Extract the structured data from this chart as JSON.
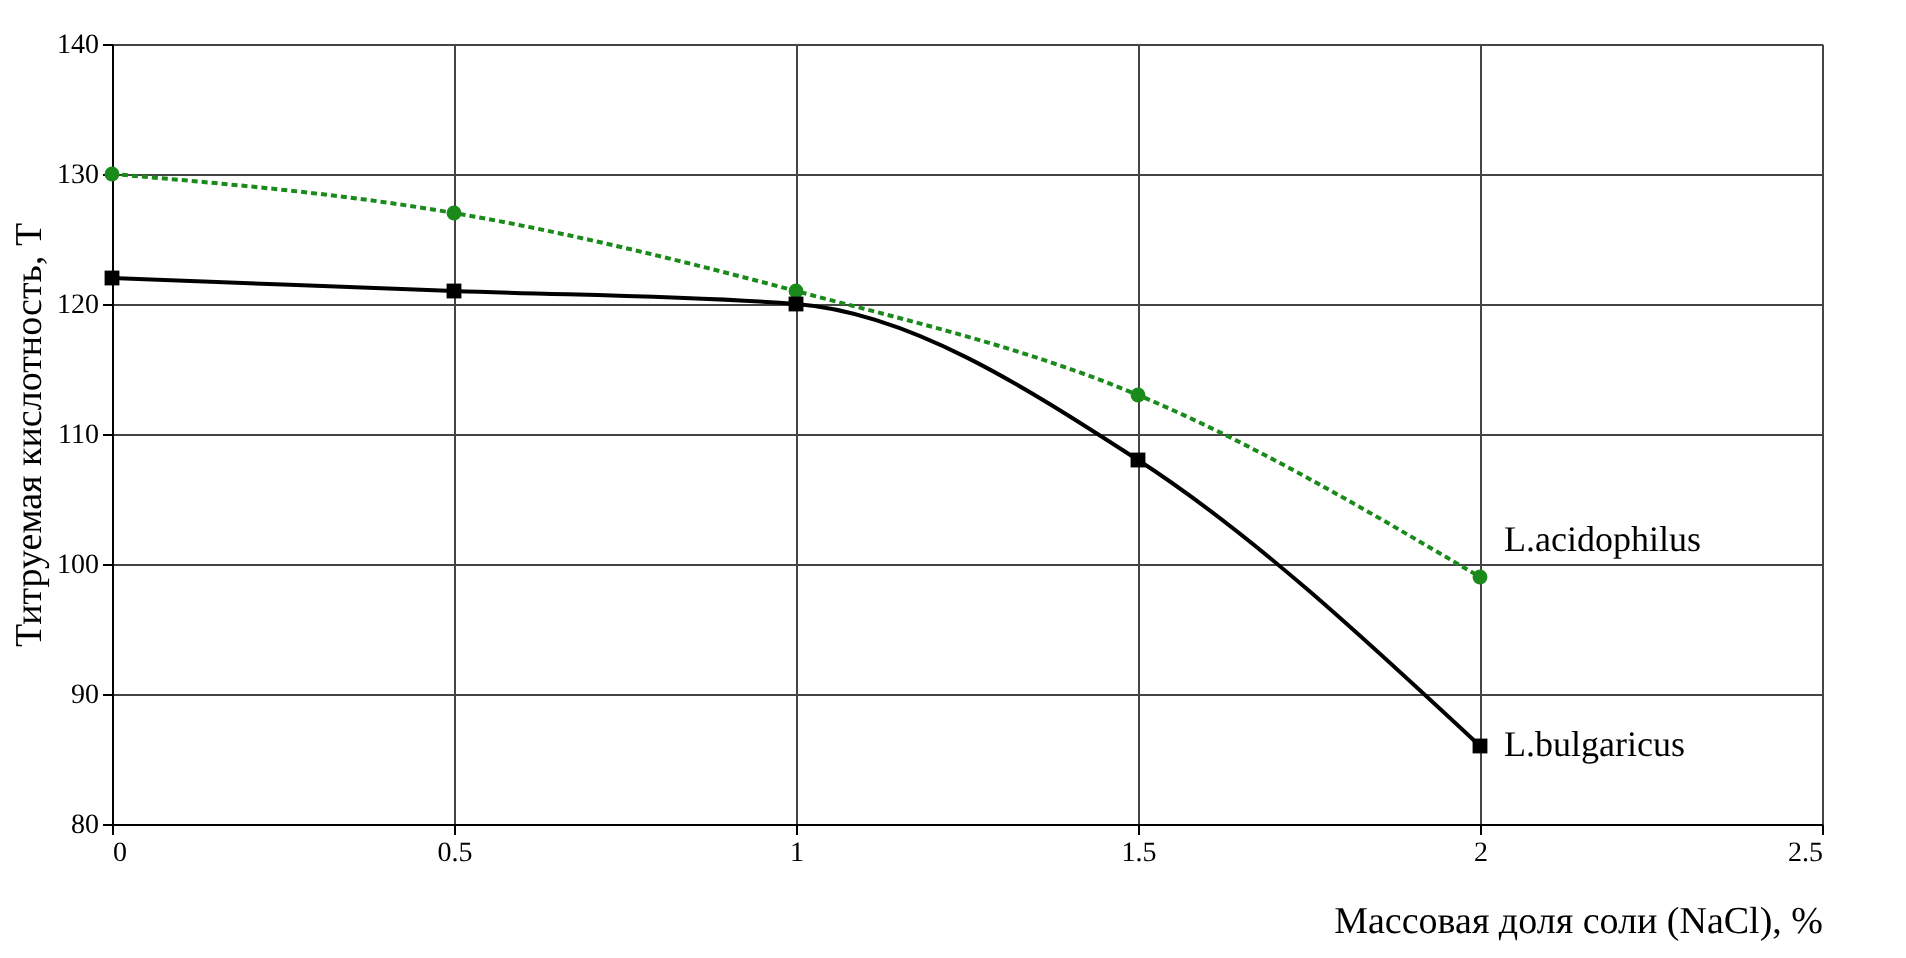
{
  "chart_data": {
    "type": "line",
    "xlabel": "Массовая доля соли (NaCl), %",
    "ylabel": "Титруемая кислотность, Т",
    "x": [
      0,
      0.5,
      1,
      1.5,
      2
    ],
    "series": [
      {
        "name": "L.acidophilus",
        "color": "#1a8a1a",
        "values": [
          130,
          127,
          121,
          113,
          99
        ],
        "marker": "circle",
        "line_style": "dotted"
      },
      {
        "name": "L.bulgaricus",
        "color": "#000000",
        "values": [
          122,
          121,
          120,
          108,
          86
        ],
        "marker": "square",
        "line_style": "solid"
      }
    ],
    "xlim": [
      0,
      2.5
    ],
    "xticks": [
      0,
      0.5,
      1,
      1.5,
      2,
      2.5
    ],
    "ylim": [
      80,
      140
    ],
    "yticks": [
      80,
      90,
      100,
      110,
      120,
      130,
      140
    ],
    "grid": true,
    "legend": false
  }
}
